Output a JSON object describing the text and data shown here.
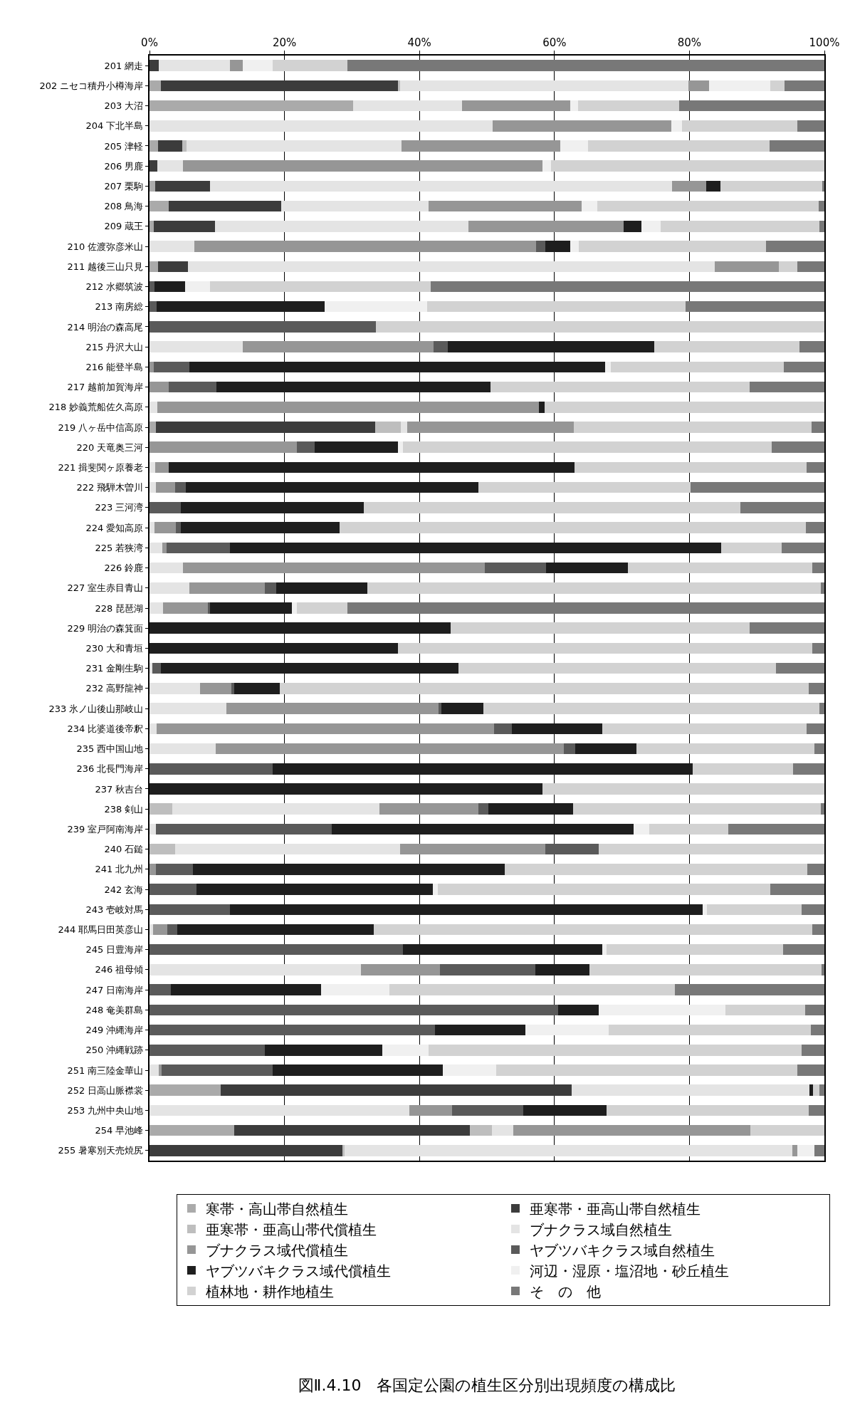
{
  "chart_data": {
    "type": "bar",
    "title": "図Ⅱ.4.10　各国定公園の植生区分別出現頻度の構成比",
    "orientation": "horizontal",
    "stacked": true,
    "categories": [
      "201 網走",
      "202 ニセコ積丹小樽海岸",
      "203 大沼",
      "204 下北半島",
      "205 津軽",
      "206 男鹿",
      "207 栗駒",
      "208 鳥海",
      "209 蔵王",
      "210 佐渡弥彦米山",
      "211 越後三山只見",
      "212 水郷筑波",
      "213 南房総",
      "214 明治の森高尾",
      "215 丹沢大山",
      "216 能登半島",
      "217 越前加賀海岸",
      "218 妙義荒船佐久高原",
      "219 八ヶ岳中信高原",
      "220 天竜奥三河",
      "221 揖斐関ヶ原養老",
      "222 飛騨木曽川",
      "223 三河湾",
      "224 愛知高原",
      "225 若狭湾",
      "226 鈴鹿",
      "227 室生赤目青山",
      "228 琵琶湖",
      "229 明治の森箕面",
      "230 大和青垣",
      "231 金剛生駒",
      "232 高野龍神",
      "233 氷ノ山後山那岐山",
      "234 比婆道後帝釈",
      "235 西中国山地",
      "236 北長門海岸",
      "237 秋吉台",
      "238 剣山",
      "239 室戸阿南海岸",
      "240 石鎚",
      "241 北九州",
      "242 玄海",
      "243 壱岐対馬",
      "244 耶馬日田英彦山",
      "245 日豊海岸",
      "246 祖母傾",
      "247 日南海岸",
      "248 奄美群島",
      "249 沖縄海岸",
      "250 沖縄戦跡",
      "251 南三陸金華山",
      "252 日高山脈襟裳",
      "253 九州中央山地",
      "254 早池峰",
      "255 暑寒別天売焼尻"
    ],
    "series": [
      {
        "name": "寒帯・高山帯自然植生",
        "color": "#aaaaaa",
        "values": [
          null,
          1.7,
          30.2,
          null,
          1.3,
          null,
          0.8,
          2.8,
          0.6,
          null,
          1.3,
          null,
          null,
          null,
          null,
          null,
          null,
          null,
          1.0,
          null,
          null,
          null,
          null,
          null,
          null,
          null,
          null,
          null,
          null,
          null,
          null,
          null,
          null,
          null,
          null,
          null,
          null,
          null,
          null,
          null,
          null,
          null,
          null,
          null,
          null,
          null,
          null,
          null,
          null,
          null,
          null,
          10.5,
          null,
          12.6,
          null
        ]
      },
      {
        "name": "亜寒帯・亜高山帯自然植生",
        "color": "#3c3c3c",
        "values": [
          1.4,
          35.1,
          null,
          null,
          3.6,
          1.2,
          8.2,
          16.7,
          9.1,
          null,
          4.4,
          null,
          null,
          null,
          null,
          null,
          null,
          null,
          32.4,
          null,
          null,
          null,
          null,
          null,
          null,
          null,
          null,
          null,
          null,
          null,
          null,
          null,
          null,
          null,
          null,
          null,
          null,
          null,
          null,
          null,
          null,
          null,
          null,
          null,
          null,
          null,
          null,
          null,
          null,
          null,
          null,
          52.0,
          null,
          34.9,
          28.6
        ]
      },
      {
        "name": "亜寒帯・亜高山帯代償植生",
        "color": "#bebebe",
        "values": [
          null,
          0.3,
          null,
          null,
          0.6,
          null,
          null,
          null,
          null,
          null,
          null,
          null,
          null,
          null,
          null,
          null,
          null,
          null,
          3.8,
          null,
          null,
          null,
          null,
          null,
          null,
          null,
          null,
          null,
          null,
          null,
          null,
          null,
          null,
          null,
          null,
          null,
          null,
          3.4,
          null,
          3.8,
          null,
          null,
          null,
          null,
          null,
          null,
          null,
          null,
          null,
          null,
          null,
          null,
          null,
          3.2,
          0.3
        ]
      },
      {
        "name": "ブナクラス域自然植生",
        "color": "#e4e4e4",
        "values": [
          10.5,
          42.8,
          16.1,
          50.8,
          31.8,
          3.8,
          68.4,
          21.9,
          37.6,
          6.6,
          78.1,
          null,
          null,
          null,
          13.8,
          null,
          null,
          1.2,
          1.0,
          null,
          0.8,
          0.9,
          null,
          0.7,
          1.9,
          5.0,
          5.9,
          2.0,
          null,
          null,
          0.4,
          7.5,
          11.4,
          1.1,
          9.8,
          null,
          null,
          30.7,
          0.9,
          33.3,
          null,
          null,
          null,
          0.5,
          null,
          31.3,
          null,
          null,
          null,
          null,
          1.4,
          35.3,
          38.5,
          3.2,
          66.4
        ]
      },
      {
        "name": "ブナクラス域代償植生",
        "color": "#969696",
        "values": [
          1.9,
          3.0,
          16.0,
          26.5,
          23.6,
          53.2,
          5.1,
          22.6,
          22.9,
          50.7,
          9.5,
          null,
          null,
          null,
          28.3,
          0.6,
          2.8,
          56.5,
          24.7,
          21.8,
          2.0,
          2.9,
          null,
          3.2,
          0.6,
          44.7,
          11.2,
          6.6,
          null,
          null,
          null,
          4.6,
          31.4,
          50.0,
          51.6,
          null,
          null,
          14.6,
          null,
          21.6,
          1.0,
          null,
          null,
          2.1,
          null,
          11.7,
          null,
          null,
          null,
          null,
          0.4,
          null,
          6.3,
          35.1,
          0.7
        ]
      },
      {
        "name": "ヤブツバキクラス域自然植生",
        "color": "#5a5a5a",
        "values": [
          null,
          null,
          null,
          null,
          null,
          null,
          null,
          null,
          null,
          1.4,
          null,
          0.7,
          1.1,
          33.5,
          2.1,
          5.3,
          7.1,
          null,
          null,
          2.7,
          null,
          1.6,
          4.6,
          0.7,
          9.4,
          9.1,
          1.7,
          0.4,
          null,
          null,
          1.3,
          0.4,
          0.4,
          2.6,
          1.7,
          18.3,
          null,
          1.5,
          26.1,
          7.9,
          5.4,
          7.0,
          11.9,
          1.5,
          37.6,
          14.2,
          3.2,
          60.6,
          42.3,
          17.1,
          16.5,
          null,
          10.6,
          null,
          null
        ]
      },
      {
        "name": "ヤブツバキクラス域代償植生",
        "color": "#1e1e1e",
        "values": [
          null,
          null,
          null,
          null,
          null,
          null,
          2.1,
          null,
          2.7,
          3.6,
          null,
          4.6,
          24.9,
          null,
          30.6,
          61.6,
          40.6,
          0.8,
          null,
          12.3,
          60.2,
          43.3,
          27.2,
          23.6,
          72.8,
          12.1,
          13.5,
          12.1,
          44.6,
          36.8,
          44.1,
          6.8,
          6.3,
          13.4,
          9.1,
          62.2,
          58.2,
          12.6,
          44.7,
          null,
          46.2,
          35.0,
          70.1,
          29.1,
          29.5,
          8.0,
          22.2,
          6.0,
          13.4,
          17.4,
          25.2,
          0.5,
          12.3,
          null,
          null
        ]
      },
      {
        "name": "河辺・湿原・塩沼地・砂丘植生",
        "color": "#f0f0f0",
        "values": [
          4.4,
          9.1,
          1.2,
          1.6,
          4.1,
          1.3,
          null,
          2.4,
          2.8,
          1.3,
          null,
          3.7,
          15.1,
          null,
          null,
          0.9,
          null,
          null,
          null,
          0.7,
          null,
          null,
          null,
          null,
          null,
          null,
          null,
          0.7,
          null,
          null,
          null,
          null,
          null,
          null,
          null,
          null,
          null,
          null,
          2.3,
          null,
          null,
          0.7,
          0.6,
          null,
          0.6,
          null,
          10.2,
          18.7,
          12.3,
          6.8,
          7.9,
          null,
          null,
          null,
          2.5
        ]
      },
      {
        "name": "植林地・耕作地植生",
        "color": "#d2d2d2",
        "values": [
          11.1,
          2.1,
          15.0,
          17.1,
          26.9,
          40.5,
          15.1,
          32.8,
          23.6,
          27.8,
          2.7,
          32.7,
          38.3,
          66.5,
          21.5,
          25.6,
          38.4,
          41.5,
          35.2,
          54.7,
          34.4,
          31.5,
          55.7,
          69.1,
          9.0,
          27.3,
          67.2,
          7.5,
          44.3,
          61.4,
          47.0,
          78.4,
          49.8,
          30.3,
          26.3,
          14.9,
          41.8,
          36.7,
          11.8,
          33.4,
          44.9,
          49.3,
          14.0,
          65.0,
          26.2,
          34.4,
          42.3,
          11.8,
          30.0,
          55.3,
          44.6,
          1.0,
          30.0,
          11.0,
          null
        ]
      },
      {
        "name": "そ　の　他",
        "color": "#787878",
        "values": [
          70.7,
          5.9,
          21.5,
          4.0,
          8.1,
          null,
          0.3,
          0.8,
          0.7,
          8.6,
          4.0,
          58.3,
          20.6,
          null,
          3.7,
          6.0,
          11.1,
          null,
          1.9,
          7.8,
          2.6,
          19.8,
          12.5,
          2.7,
          6.3,
          1.8,
          0.5,
          70.7,
          11.1,
          1.8,
          7.2,
          2.3,
          0.7,
          2.6,
          1.5,
          4.6,
          null,
          0.5,
          14.2,
          null,
          2.5,
          8.0,
          3.4,
          1.8,
          6.1,
          0.4,
          22.1,
          2.9,
          2.0,
          3.4,
          4.0,
          0.7,
          2.3,
          null,
          1.5
        ]
      }
    ],
    "xlim": [
      0,
      100
    ],
    "xticks": [
      {
        "value": 0,
        "label": "0%"
      },
      {
        "value": 20,
        "label": "20%"
      },
      {
        "value": 40,
        "label": "40%"
      },
      {
        "value": 60,
        "label": "60%"
      },
      {
        "value": 80,
        "label": "80%"
      },
      {
        "value": 100,
        "label": "100%"
      }
    ],
    "grid": "x",
    "legend": "bottom"
  }
}
